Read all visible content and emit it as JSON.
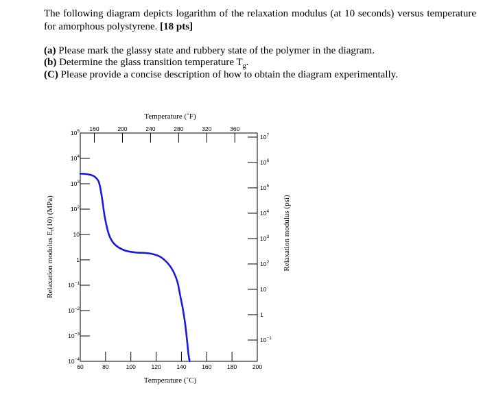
{
  "question": {
    "intro": "The following diagram depicts logarithm of the relaxation modulus (at 10 seconds) versus temperature for amorphous polystyrene.",
    "points": "[18 pts]",
    "parts": [
      {
        "label": "(a)",
        "text": "Please mark the glassy state and rubbery state of the polymer in the diagram."
      },
      {
        "label": "(b)",
        "text": "Determine the glass transition temperature T",
        "subscript": "g",
        "suffix": "."
      },
      {
        "label": "(C)",
        "text": "Please provide a concise description of how to obtain the diagram experimentally."
      }
    ]
  },
  "chart_data": {
    "type": "line",
    "x_bottom": {
      "label": "Temperature (˚C)",
      "range": [
        60,
        200
      ],
      "ticks": [
        "60",
        "80",
        "100",
        "120",
        "140",
        "160",
        "180",
        "200"
      ]
    },
    "x_top": {
      "label": "Temperature (˚F)",
      "ticks": [
        "160",
        "200",
        "240",
        "280",
        "320",
        "360"
      ],
      "values": [
        160,
        200,
        240,
        280,
        320,
        360
      ]
    },
    "y_left": {
      "label": "Relaxation modulus E",
      "label_sub": "r",
      "label_suffix": "(10) (MPa)",
      "scale": "log",
      "range_exp": [
        -4,
        5
      ],
      "ticks": [
        {
          "exp": 5,
          "base": "10",
          "sup": "5"
        },
        {
          "exp": 4,
          "base": "10",
          "sup": "4"
        },
        {
          "exp": 3,
          "base": "10",
          "sup": "3"
        },
        {
          "exp": 2,
          "base": "10",
          "sup": "2"
        },
        {
          "exp": 1,
          "base": "10",
          "sup": ""
        },
        {
          "exp": 0,
          "base": "1",
          "sup": ""
        },
        {
          "exp": -1,
          "base": "10",
          "sup": "−1"
        },
        {
          "exp": -2,
          "base": "10",
          "sup": "−2"
        },
        {
          "exp": -3,
          "base": "10",
          "sup": "−3"
        },
        {
          "exp": -4,
          "base": "10",
          "sup": "−4"
        }
      ]
    },
    "y_right": {
      "label": "Relaxation modulus (psi)",
      "scale": "log",
      "ticks": [
        {
          "exp": 7,
          "base": "10",
          "sup": "7"
        },
        {
          "exp": 6,
          "base": "10",
          "sup": "6"
        },
        {
          "exp": 5,
          "base": "10",
          "sup": "5"
        },
        {
          "exp": 4,
          "base": "10",
          "sup": "4"
        },
        {
          "exp": 3,
          "base": "10",
          "sup": "3"
        },
        {
          "exp": 2,
          "base": "10",
          "sup": "2"
        },
        {
          "exp": 1,
          "base": "10",
          "sup": ""
        },
        {
          "exp": 0,
          "base": "1",
          "sup": ""
        },
        {
          "exp": -1,
          "base": "10",
          "sup": "−1"
        }
      ]
    },
    "series": [
      {
        "color": "#1a1adb",
        "points": [
          [
            60,
            3.4
          ],
          [
            65,
            3.38
          ],
          [
            70,
            3.32
          ],
          [
            73,
            3.2
          ],
          [
            75,
            3.02
          ],
          [
            77,
            2.5
          ],
          [
            79,
            1.8
          ],
          [
            81,
            1.3
          ],
          [
            83,
            0.95
          ],
          [
            86,
            0.68
          ],
          [
            90,
            0.5
          ],
          [
            96,
            0.36
          ],
          [
            104,
            0.29
          ],
          [
            112,
            0.27
          ],
          [
            118,
            0.22
          ],
          [
            124,
            0.1
          ],
          [
            130,
            -0.18
          ],
          [
            134,
            -0.5
          ],
          [
            137,
            -0.9
          ],
          [
            139,
            -1.4
          ],
          [
            141,
            -1.9
          ],
          [
            143,
            -2.55
          ],
          [
            144.5,
            -3.2
          ],
          [
            145.5,
            -3.7
          ],
          [
            146.5,
            -4
          ]
        ]
      }
    ]
  }
}
